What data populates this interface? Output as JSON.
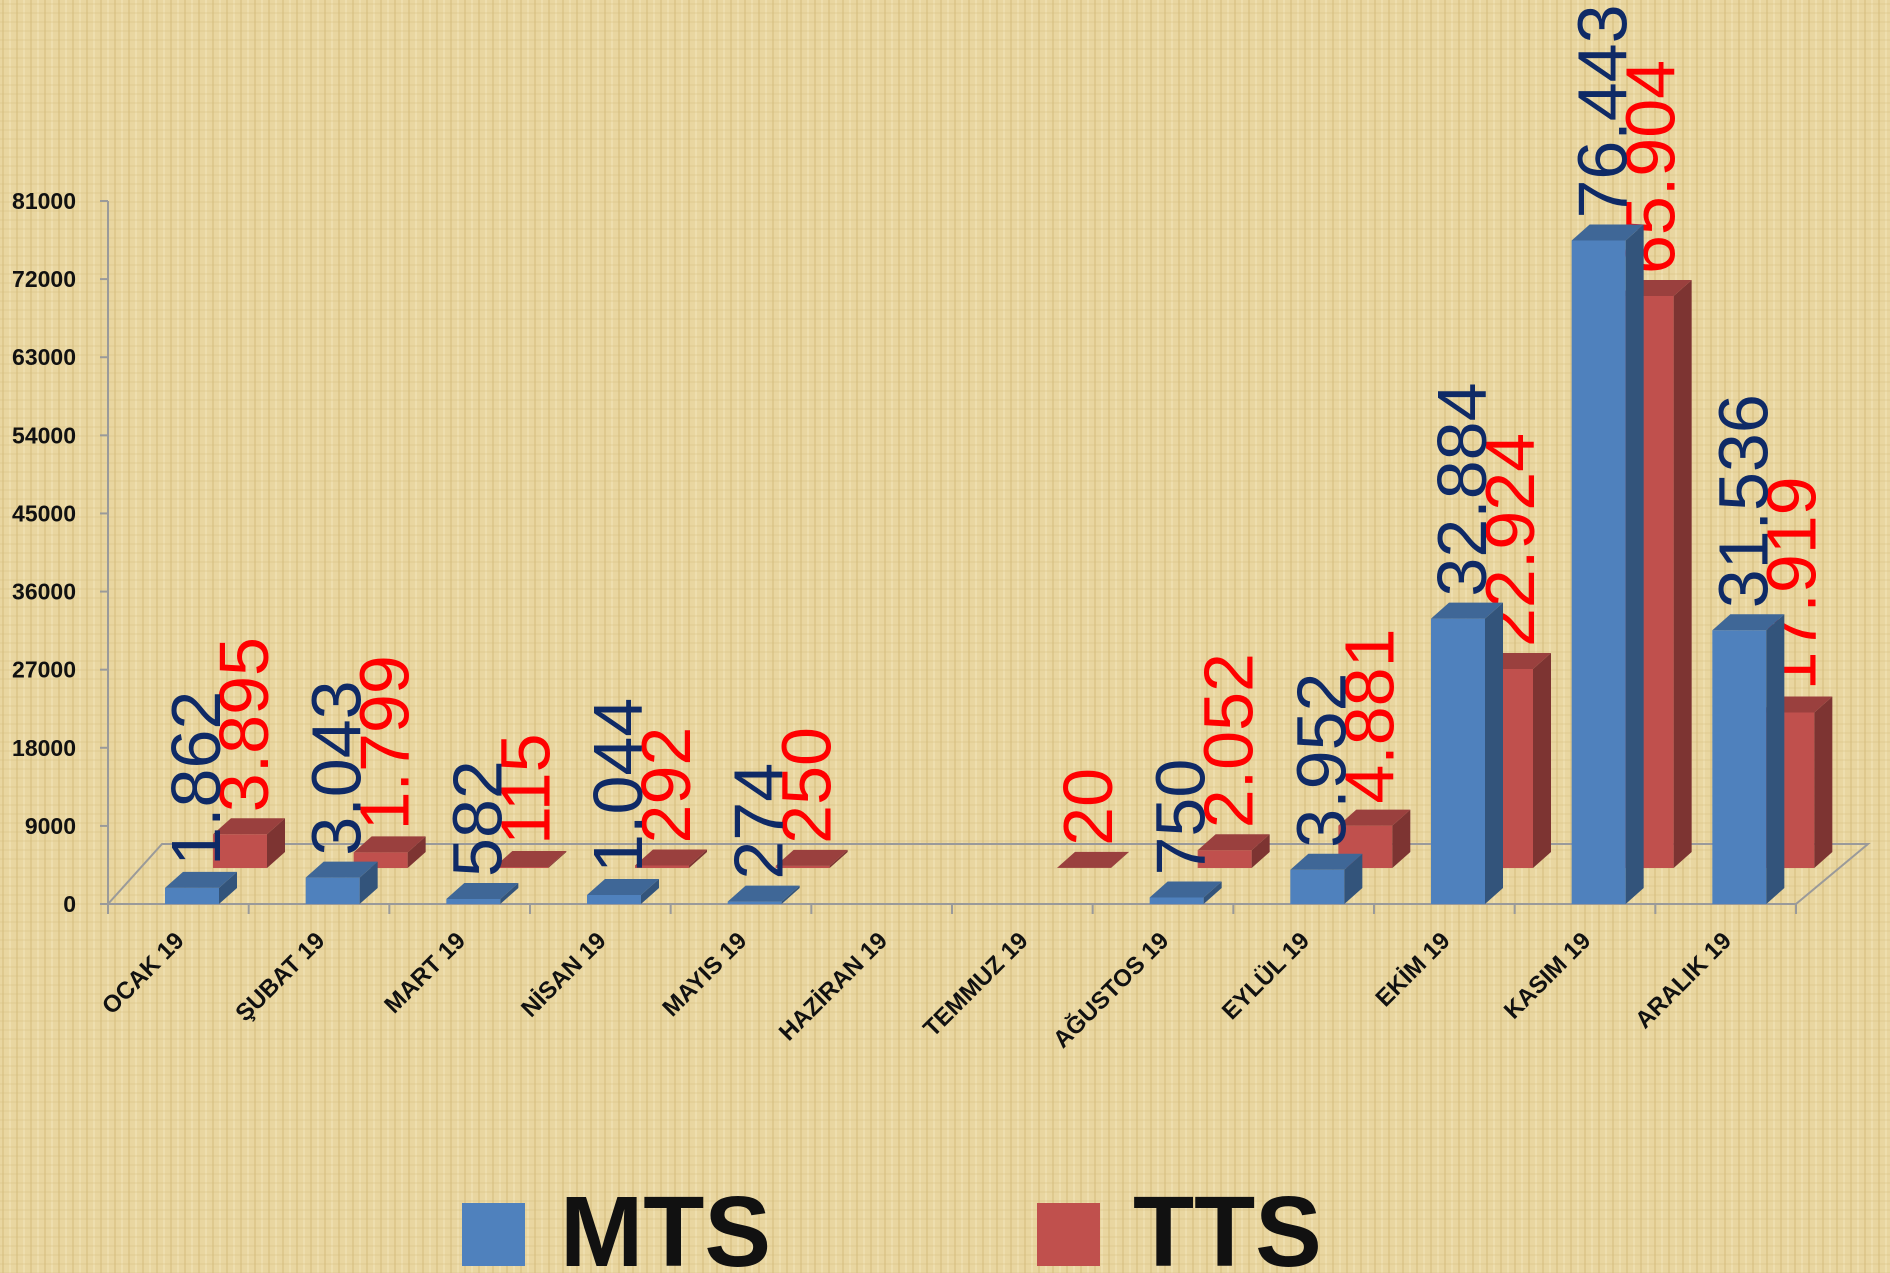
{
  "chart_data": {
    "type": "bar3d",
    "categories": [
      "OCAK 19",
      "ŞUBAT 19",
      "MART 19",
      "NİSAN 19",
      "MAYIS 19",
      "HAZİRAN 19",
      "TEMMUZ 19",
      "AĞUSTOS 19",
      "EYLÜL 19",
      "EKİM 19",
      "KASIM 19",
      "ARALIK 19"
    ],
    "series": [
      {
        "name": "MTS",
        "color": "#4f81bd",
        "label_color": "#0f2a66",
        "values": [
          1862,
          3043,
          582,
          1044,
          274,
          null,
          null,
          750,
          3952,
          32884,
          76443,
          31536
        ],
        "value_labels": [
          "1.862",
          "3.043",
          "582",
          "1.044",
          "274",
          null,
          null,
          "750",
          "3.952",
          "32.884",
          "76.443",
          "31.536"
        ]
      },
      {
        "name": "TTS",
        "color": "#c0504d",
        "label_color": "#ff0000",
        "values": [
          3895,
          1799,
          115,
          292,
          250,
          null,
          20,
          2052,
          4881,
          22924,
          65904,
          17919
        ],
        "value_labels": [
          "3.895",
          "1.799",
          "115",
          "292",
          "250",
          null,
          "20",
          "2.052",
          "4.881",
          "22.924",
          "65.904",
          "17.919"
        ]
      }
    ],
    "ylim": [
      0,
      81000
    ],
    "yticks": [
      0,
      9000,
      18000,
      27000,
      36000,
      45000,
      54000,
      63000,
      72000,
      81000
    ],
    "legend": "bottom"
  }
}
